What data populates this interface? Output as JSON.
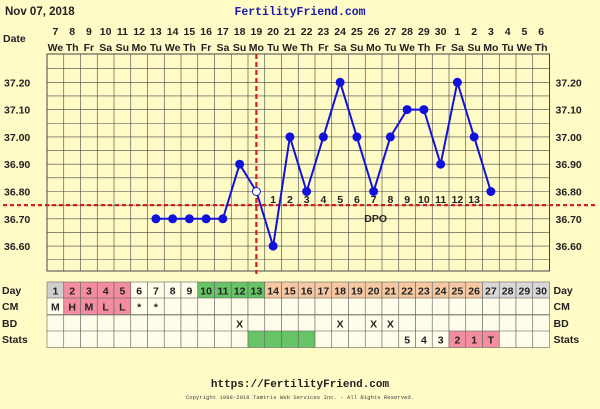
{
  "header": {
    "date": "Nov 07, 2018",
    "site": "FertilityFriend.com"
  },
  "footer": {
    "url": "https://FertilityFriend.com",
    "copyright": "Copyright 1998-2018 Tamtris Web Services Inc. - All Rights Reserved."
  },
  "colors": {
    "background": "#fffbc7",
    "temp_line": "#1111dd",
    "coverline": "#cc2222",
    "menstruation": "#f48da0",
    "fertile": "#66c466",
    "luteal": "#f6c9a3",
    "after": "#d9d9d9",
    "before": "#cfcfcf",
    "site_title": "#1a1aa8"
  },
  "chart_data": {
    "type": "line",
    "date_row_label": "Date",
    "dates": [
      "7",
      "8",
      "9",
      "10",
      "11",
      "12",
      "13",
      "14",
      "15",
      "16",
      "17",
      "18",
      "19",
      "20",
      "21",
      "22",
      "23",
      "24",
      "25",
      "26",
      "27",
      "28",
      "29",
      "30",
      "1",
      "2",
      "3",
      "4",
      "5",
      "6"
    ],
    "weekdays": [
      "We",
      "Th",
      "Fr",
      "Sa",
      "Su",
      "Mo",
      "Tu",
      "We",
      "Th",
      "Fr",
      "Sa",
      "Su",
      "Mo",
      "Tu",
      "We",
      "Th",
      "Fr",
      "Sa",
      "Su",
      "Mo",
      "Tu",
      "We",
      "Th",
      "Fr",
      "Sa",
      "Su",
      "Mo",
      "Tu",
      "We",
      "Th"
    ],
    "ylim": [
      36.5,
      37.3
    ],
    "yticks": [
      "37.20",
      "37.10",
      "37.00",
      "36.90",
      "36.80",
      "36.70",
      "36.60"
    ],
    "grid": true,
    "temps": [
      null,
      null,
      null,
      null,
      null,
      null,
      36.7,
      36.7,
      36.7,
      36.7,
      36.7,
      36.9,
      36.8,
      36.6,
      37.0,
      36.8,
      37.0,
      37.2,
      37.0,
      36.8,
      37.0,
      37.1,
      37.1,
      36.9,
      37.2,
      37.0,
      36.8,
      null,
      null,
      null
    ],
    "open_markers": [
      12
    ],
    "coverline_value": 36.75,
    "ovulation_day": 13,
    "dpo_label": "DPO",
    "dpo": [
      "1",
      "2",
      "3",
      "4",
      "5",
      "6",
      "7",
      "8",
      "9",
      "10",
      "11",
      "12",
      "13"
    ],
    "rows": {
      "day": {
        "label": "Day",
        "values": [
          "1",
          "2",
          "3",
          "4",
          "5",
          "6",
          "7",
          "8",
          "9",
          "10",
          "11",
          "12",
          "13",
          "14",
          "15",
          "16",
          "17",
          "18",
          "19",
          "20",
          "21",
          "22",
          "23",
          "24",
          "25",
          "26",
          "27",
          "28",
          "29",
          "30"
        ],
        "phases": [
          "before",
          "menstruation",
          "menstruation",
          "menstruation",
          "menstruation",
          "none",
          "none",
          "none",
          "none",
          "fertile",
          "fertile",
          "fertile",
          "fertile",
          "luteal",
          "luteal",
          "luteal",
          "luteal",
          "luteal",
          "luteal",
          "luteal",
          "luteal",
          "luteal",
          "luteal",
          "luteal",
          "luteal",
          "luteal",
          "after",
          "after",
          "after",
          "after"
        ]
      },
      "cm": {
        "label": "CM",
        "values": [
          "M",
          "H",
          "M",
          "L",
          "L",
          "*",
          "*",
          "",
          "",
          "",
          "",
          "",
          "",
          "",
          "",
          "",
          "",
          "",
          "",
          "",
          "",
          "",
          "",
          "",
          "",
          "",
          "",
          "",
          "",
          ""
        ]
      },
      "bd": {
        "label": "BD",
        "values": [
          "",
          "",
          "",
          "",
          "",
          "",
          "",
          "",
          "",
          "",
          "",
          "X",
          "",
          "",
          "",
          "",
          "",
          "X",
          "",
          "X",
          "X",
          "",
          "",
          "",
          "",
          "",
          "",
          "",
          "",
          ""
        ]
      },
      "stats": {
        "label": "Stats",
        "values": [
          "",
          "",
          "",
          "",
          "",
          "",
          "",
          "",
          "",
          "",
          "",
          "",
          "",
          "",
          "",
          "",
          "",
          "",
          "",
          "",
          "",
          "5",
          "4",
          "3",
          "2",
          "1",
          "T",
          "",
          "",
          ""
        ]
      }
    }
  }
}
